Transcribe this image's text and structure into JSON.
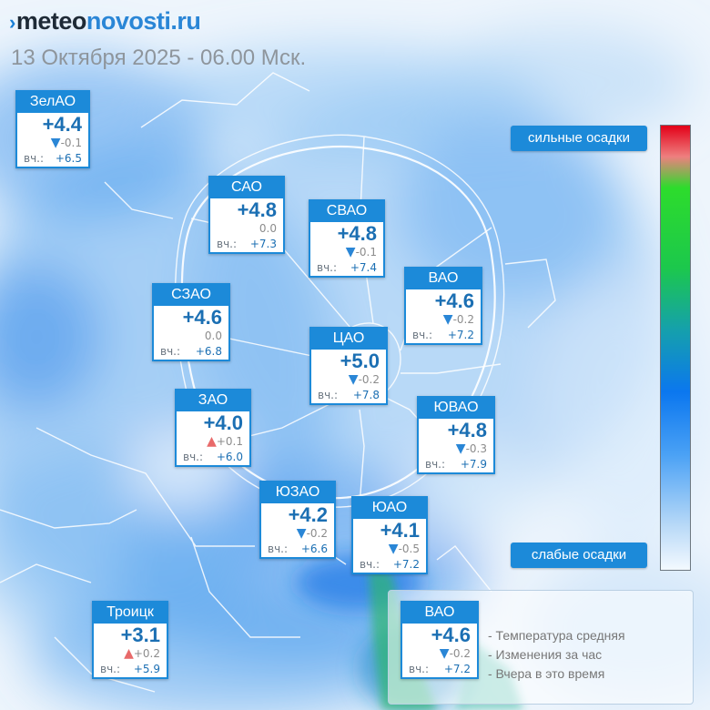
{
  "header": {
    "logo_part1": "meteo",
    "logo_part2": "novosti.ru",
    "datetime": "13 Октября 2025 - 06.00 Мск."
  },
  "scale": {
    "top_label": "сильные осадки",
    "bottom_label": "слабые осадки",
    "colors_top_to_bottom": [
      "#e30018",
      "#ee7f7f",
      "#2ddc2c",
      "#15a0ac",
      "#0b77ef",
      "#b8d9f7",
      "#f3f9ff"
    ]
  },
  "yesterday_label": "вч.:",
  "districts": [
    {
      "name": "ЗелАО",
      "temp": "+4.4",
      "trend": "down",
      "change": "-0.1",
      "yesterday": "+6.5"
    },
    {
      "name": "САО",
      "temp": "+4.8",
      "trend": "none",
      "change": "0.0",
      "yesterday": "+7.3"
    },
    {
      "name": "СВАО",
      "temp": "+4.8",
      "trend": "down",
      "change": "-0.1",
      "yesterday": "+7.4"
    },
    {
      "name": "ВАО",
      "temp": "+4.6",
      "trend": "down",
      "change": "-0.2",
      "yesterday": "+7.2"
    },
    {
      "name": "СЗАО",
      "temp": "+4.6",
      "trend": "none",
      "change": "0.0",
      "yesterday": "+6.8"
    },
    {
      "name": "ЦАО",
      "temp": "+5.0",
      "trend": "down",
      "change": "-0.2",
      "yesterday": "+7.8"
    },
    {
      "name": "ЗАО",
      "temp": "+4.0",
      "trend": "up",
      "change": "+0.1",
      "yesterday": "+6.0"
    },
    {
      "name": "ЮВАО",
      "temp": "+4.8",
      "trend": "down",
      "change": "-0.3",
      "yesterday": "+7.9"
    },
    {
      "name": "ЮЗАО",
      "temp": "+4.2",
      "trend": "down",
      "change": "-0.2",
      "yesterday": "+6.6"
    },
    {
      "name": "ЮАО",
      "temp": "+4.1",
      "trend": "down",
      "change": "-0.5",
      "yesterday": "+7.2"
    },
    {
      "name": "Троицк",
      "temp": "+3.1",
      "trend": "up",
      "change": "+0.2",
      "yesterday": "+5.9"
    }
  ],
  "legend": {
    "sample": {
      "name": "ВАО",
      "temp": "+4.6",
      "trend": "down",
      "change": "-0.2",
      "yesterday": "+7.2"
    },
    "items": [
      "- Температура средняя",
      "- Изменения за час",
      "- Вчера в это время"
    ]
  },
  "colors": {
    "accent": "#1c8ad9",
    "temp_text": "#1b6fb3",
    "down_arrow": "#2a86d6",
    "up_arrow": "#e86a6a"
  }
}
